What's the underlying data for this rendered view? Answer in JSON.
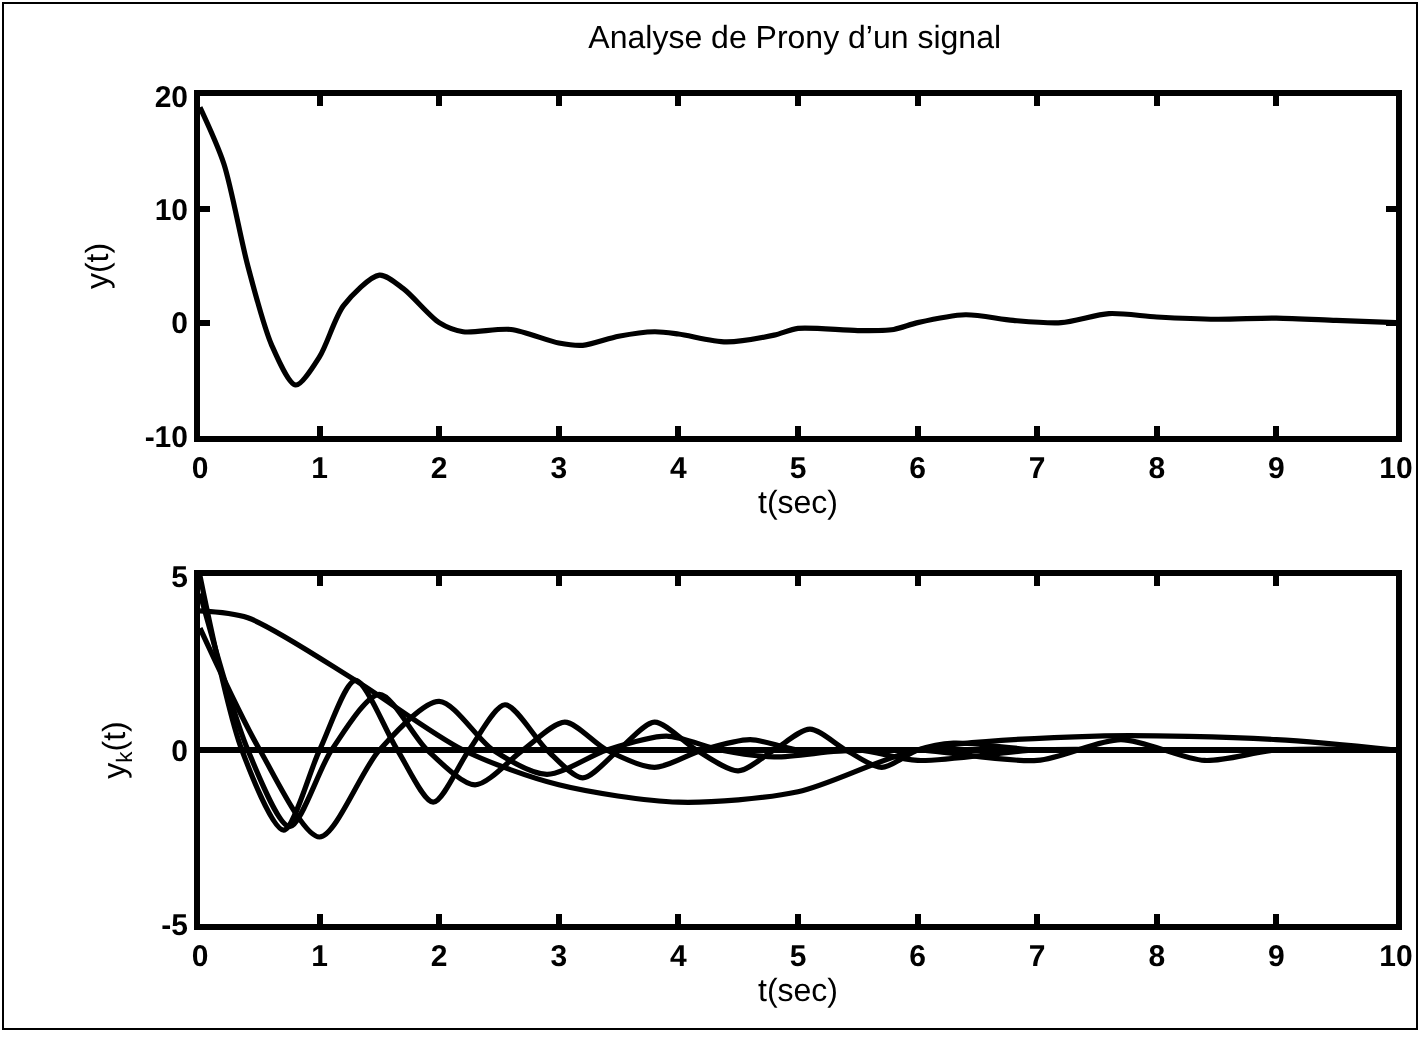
{
  "chart_data": [
    {
      "type": "line",
      "title": "Analyse de Prony d’un signal",
      "xlabel": "t(sec)",
      "ylabel": "y(t)",
      "xlim": [
        0,
        10
      ],
      "xticks": [
        0,
        1,
        2,
        3,
        4,
        5,
        6,
        7,
        8,
        9,
        10
      ],
      "ylim": [
        -10,
        20
      ],
      "yticks": [
        -10,
        0,
        10,
        20
      ],
      "grid": false,
      "series": [
        {
          "color": "#000000",
          "x": [
            0,
            0.2,
            0.4,
            0.6,
            0.8,
            1.0,
            1.2,
            1.5,
            1.7,
            2.0,
            2.2,
            2.6,
            3.0,
            3.2,
            3.5,
            3.8,
            4.0,
            4.4,
            4.8,
            5.0,
            5.5,
            5.8,
            6.0,
            6.4,
            6.8,
            7.2,
            7.6,
            8.0,
            8.5,
            9.0,
            9.5,
            10
          ],
          "values": [
            19,
            14,
            5,
            -2,
            -5.5,
            -3,
            1.5,
            4.2,
            3,
            0,
            -0.8,
            -0.6,
            -1.8,
            -2,
            -1.2,
            -0.8,
            -1,
            -1.7,
            -1.1,
            -0.5,
            -0.7,
            -0.6,
            0,
            0.7,
            0.2,
            0,
            0.8,
            0.5,
            0.3,
            0.4,
            0.2,
            0
          ]
        }
      ]
    },
    {
      "type": "line",
      "xlabel": "t(sec)",
      "ylabel": "y$_{k}$(t)",
      "xlim": [
        0,
        10
      ],
      "xticks": [
        0,
        1,
        2,
        3,
        4,
        5,
        6,
        7,
        8,
        9,
        10
      ],
      "ylim": [
        -5,
        5
      ],
      "yticks": [
        -5,
        0,
        5
      ],
      "grid": false,
      "ref_lines": [
        {
          "axis": "y",
          "value": 0,
          "color": "#000000"
        }
      ],
      "series": [
        {
          "color": "#000000",
          "x": [
            0,
            0.35,
            0.7,
            1.0,
            1.3,
            1.65,
            1.95,
            2.25,
            2.55,
            2.9,
            3.2,
            3.5,
            3.8,
            4.15,
            4.5,
            4.8,
            5.1,
            5.4,
            5.7,
            6.0,
            6.3,
            7.0,
            8.0,
            10
          ],
          "values": [
            5,
            0,
            -2.3,
            0,
            2,
            0,
            -1.5,
            0,
            1.3,
            0,
            -0.8,
            0,
            0.8,
            0,
            -0.6,
            0,
            0.6,
            0,
            -0.5,
            0,
            0.2,
            0,
            0,
            0
          ]
        },
        {
          "color": "#000000",
          "x": [
            0,
            0.4,
            0.75,
            1.1,
            1.5,
            1.9,
            2.3,
            2.7,
            3.05,
            3.4,
            3.8,
            4.2,
            4.6,
            5.0,
            6.0,
            7.0,
            7.7,
            8.4,
            9.0,
            10
          ],
          "values": [
            4.5,
            0,
            -2.2,
            0,
            1.6,
            0,
            -1,
            0,
            0.8,
            0,
            -0.5,
            0,
            0.3,
            0,
            0,
            -0.3,
            0.3,
            -0.3,
            0,
            0
          ]
        },
        {
          "color": "#000000",
          "x": [
            0,
            0.5,
            1.0,
            1.5,
            2.0,
            2.45,
            2.9,
            3.4,
            3.9,
            4.35,
            4.8,
            5.5,
            6.0,
            7.0,
            8.0,
            10
          ],
          "values": [
            3.5,
            0,
            -2.5,
            0,
            1.4,
            0,
            -0.7,
            0,
            0.4,
            0,
            -0.2,
            0,
            -0.3,
            0,
            0,
            0
          ]
        },
        {
          "color": "#000000",
          "x": [
            0,
            0.4,
            1.3,
            2.2,
            3.0,
            4.0,
            5.0,
            6.0,
            7.5,
            9.0,
            10
          ],
          "values": [
            4,
            3.8,
            2,
            0,
            -1,
            -1.5,
            -1.2,
            0,
            0.4,
            0.3,
            0
          ]
        }
      ]
    }
  ]
}
